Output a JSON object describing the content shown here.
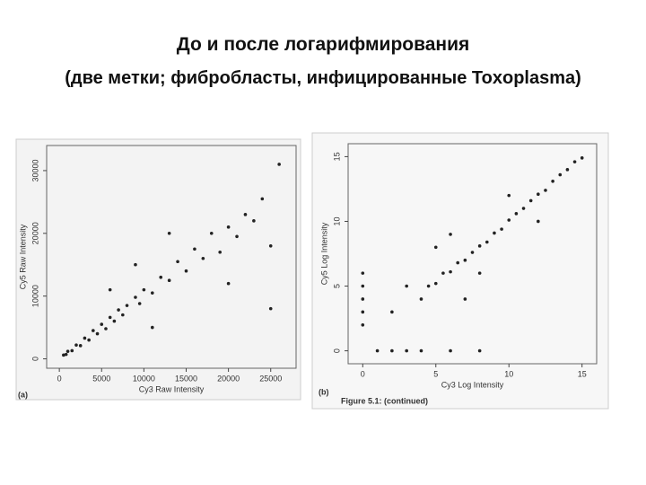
{
  "slide": {
    "title": "До и после логарифмирования",
    "subtitle": "(две метки; фибробласты, инфицированные Toxoplasma)"
  },
  "chart_data": [
    {
      "type": "scatter",
      "panel_label": "(a)",
      "x_label": "Cy3 Raw Intensity",
      "y_label": "Cy5 Raw Intensity",
      "color": "#222222",
      "xlim": [
        -1500,
        28000
      ],
      "ylim": [
        -1500,
        34000
      ],
      "xticks": [
        0,
        5000,
        10000,
        15000,
        20000,
        25000
      ],
      "yticks": [
        0,
        10000,
        20000,
        30000
      ],
      "x": [
        500,
        800,
        1000,
        1500,
        2000,
        2500,
        3000,
        3500,
        4000,
        4500,
        5000,
        5500,
        6000,
        6500,
        7000,
        7500,
        8000,
        9000,
        9500,
        10000,
        11000,
        12000,
        13000,
        14000,
        15000,
        16000,
        17000,
        18000,
        19000,
        20000,
        21000,
        22000,
        23000,
        24000,
        13000,
        9000,
        20000,
        25000,
        26000,
        25000,
        6000,
        11000
      ],
      "values": [
        600,
        700,
        1200,
        1300,
        2200,
        2100,
        3300,
        3000,
        4500,
        4000,
        5500,
        4800,
        6600,
        6000,
        7800,
        7000,
        8500,
        9800,
        8800,
        11000,
        10500,
        13000,
        12500,
        15500,
        14000,
        17500,
        16000,
        20000,
        17000,
        21000,
        19500,
        23000,
        22000,
        25500,
        20000,
        15000,
        12000,
        18000,
        31000,
        8000,
        11000,
        5000
      ]
    },
    {
      "type": "scatter",
      "panel_label": "(b)",
      "x_label": "Cy3 Log Intensity",
      "y_label": "Cy5 Log Intensity",
      "caption": "Figure 5.1: (continued)",
      "color": "#222222",
      "xlim": [
        -1,
        16
      ],
      "ylim": [
        -1,
        16
      ],
      "xticks": [
        0,
        5,
        10,
        15
      ],
      "yticks": [
        0,
        5,
        10,
        15
      ],
      "x": [
        0,
        0,
        0,
        0,
        0,
        1,
        2,
        3,
        4,
        6,
        8,
        2,
        3,
        4,
        4.5,
        5,
        5.5,
        6,
        6.5,
        7,
        7.5,
        8,
        8.5,
        9,
        9.5,
        10,
        10.5,
        11,
        11.5,
        12,
        12.5,
        13,
        13.5,
        14,
        14.5,
        15,
        6,
        8,
        10,
        12,
        5,
        7
      ],
      "values": [
        2,
        4,
        5,
        6,
        3,
        0,
        0,
        0,
        0,
        0,
        0,
        3,
        5,
        4,
        5,
        5.2,
        6,
        6.1,
        6.8,
        7,
        7.6,
        8.1,
        8.4,
        9.1,
        9.4,
        10.1,
        10.6,
        11,
        11.6,
        12.1,
        12.4,
        13.1,
        13.6,
        14,
        14.6,
        14.9,
        9,
        6,
        12,
        10,
        8,
        4
      ]
    }
  ]
}
